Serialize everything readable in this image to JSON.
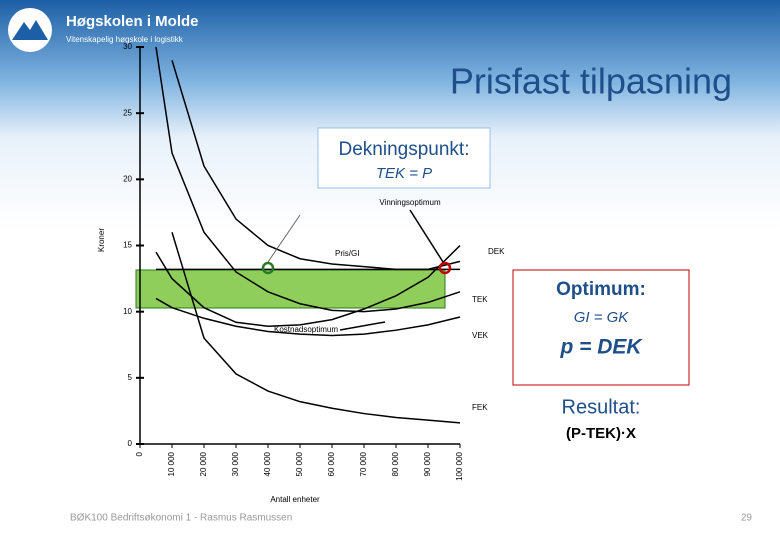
{
  "slide": {
    "logo_title": "Høgskolen i Molde",
    "logo_subtitle": "Vitenskapelig høgskole i logistikk",
    "title": "Prisfast tilpasning",
    "footer": "BØK100 Bedriftsøkonomi 1 - Rasmus Rasmussen",
    "page": "29",
    "box1": {
      "title": "Dekningspunkt:",
      "text": "TEK = P"
    },
    "box2": {
      "title": "Optimum:",
      "line1": "GI = GK",
      "line2": "p = DEK"
    },
    "box3": {
      "title": "Resultat:",
      "text": "(P-TEK)·X"
    }
  },
  "chart_data": {
    "type": "line",
    "ylabel": "Kroner",
    "xlabel": "Antall enheter",
    "annotations": [
      "Vinningsoptimum",
      "Kostnadsoptimum"
    ],
    "xlim": [
      0,
      100000
    ],
    "ylim": [
      0,
      30
    ],
    "xticks": [
      0,
      {
        "value": 10000,
        "label": "10 000"
      },
      {
        "value": 20000,
        "label": "20 000"
      },
      {
        "value": 30000,
        "label": "30 000"
      },
      {
        "value": 40000,
        "label": "40 000"
      },
      {
        "value": 50000,
        "label": "50 000"
      },
      {
        "value": 60000,
        "label": "60 000"
      },
      {
        "value": 70000,
        "label": "70 000"
      },
      {
        "value": 80000,
        "label": "80 000"
      },
      {
        "value": 90000,
        "label": "90 000"
      },
      {
        "value": 100000,
        "label": "100 000"
      }
    ],
    "yticks": [
      0,
      5,
      10,
      15,
      20,
      25,
      30
    ],
    "x": [
      5000,
      10000,
      20000,
      30000,
      40000,
      50000,
      60000,
      70000,
      80000,
      90000,
      100000
    ],
    "series": [
      {
        "name": "DEK",
        "color": "#000000",
        "values": [
          null,
          29,
          21,
          17,
          15,
          14,
          13.6,
          13.4,
          13.2,
          13.2,
          13.8
        ]
      },
      {
        "name": "TEK",
        "color": "#000000",
        "values": [
          30,
          22,
          16,
          13,
          11.5,
          10.6,
          10.1,
          10,
          10.2,
          10.7,
          11.5
        ]
      },
      {
        "color": "#000000",
        "values": [
          14.5,
          12.5,
          10.3,
          9.2,
          8.9,
          9,
          9.4,
          10.2,
          11.2,
          12.6,
          15
        ]
      },
      {
        "name": "VEK",
        "color": "#000000",
        "values": [
          11,
          10.3,
          9.5,
          8.9,
          8.5,
          8.3,
          8.2,
          8.3,
          8.6,
          9,
          9.6
        ]
      },
      {
        "name": "FEK",
        "color": "#000000",
        "values": [
          null,
          16,
          8,
          5.3,
          4,
          3.2,
          2.7,
          2.3,
          2,
          1.8,
          1.6
        ]
      },
      {
        "name": "Pris/GI",
        "color": "#000000",
        "values": [
          13.2,
          13.2,
          13.2,
          13.2,
          13.2,
          13.2,
          13.2,
          13.2,
          13.2,
          13.2,
          13.2
        ]
      }
    ]
  }
}
